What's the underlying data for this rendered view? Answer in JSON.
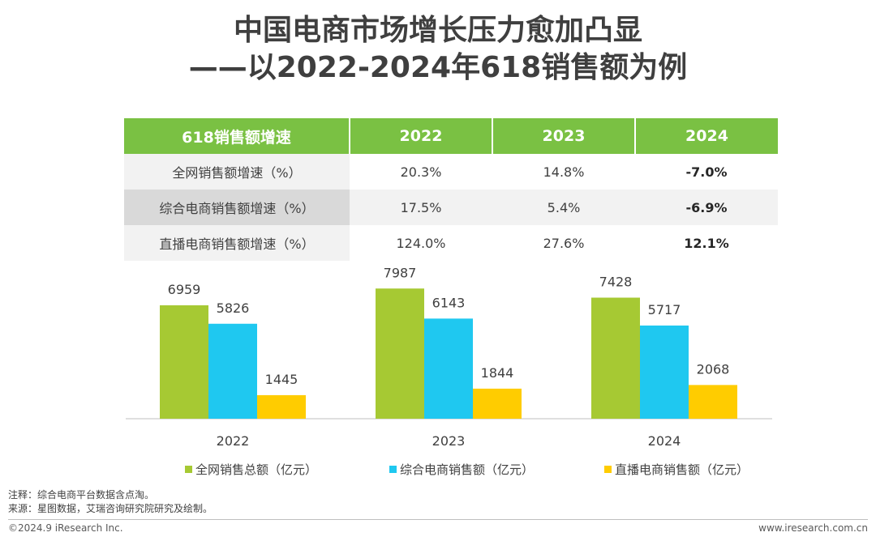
{
  "title_line1": "中国电商市场增长压力愈加凸显",
  "title_line2": "——以2022-2024年618销售额为例",
  "growth_table": {
    "header": [
      "618销售额增速",
      "2022",
      "2023",
      "2024"
    ],
    "rows": [
      {
        "label": "全网销售额增速（%）",
        "values": [
          "20.3%",
          "14.8%",
          "-7.0%"
        ]
      },
      {
        "label": "综合电商销售额增速（%）",
        "values": [
          "17.5%",
          "5.4%",
          "-6.9%"
        ]
      },
      {
        "label": "直播电商销售额增速（%）",
        "values": [
          "124.0%",
          "27.6%",
          "12.1%"
        ]
      }
    ]
  },
  "chart_data": {
    "type": "bar",
    "categories": [
      "2022",
      "2023",
      "2024"
    ],
    "series": [
      {
        "name": "全网销售总额（亿元）",
        "values": [
          6959,
          7987,
          7428
        ],
        "color": "#a6c933"
      },
      {
        "name": "综合电商销售额（亿元）",
        "values": [
          5826,
          6143,
          5717
        ],
        "color": "#1fc8f0"
      },
      {
        "name": "直播电商销售额（亿元）",
        "values": [
          1445,
          1844,
          2068
        ],
        "color": "#ffcc00"
      }
    ],
    "ylim": [
      0,
      8500
    ],
    "grid": false,
    "legend_position": "bottom",
    "data_labels": true
  },
  "notes": {
    "note1": "注释：综合电商平台数据含点淘。",
    "note2": "来源：星图数据，艾瑞咨询研究院研究及绘制。"
  },
  "footer": {
    "left": "©2024.9 iResearch Inc.",
    "right": "www.iresearch.com.cn"
  }
}
